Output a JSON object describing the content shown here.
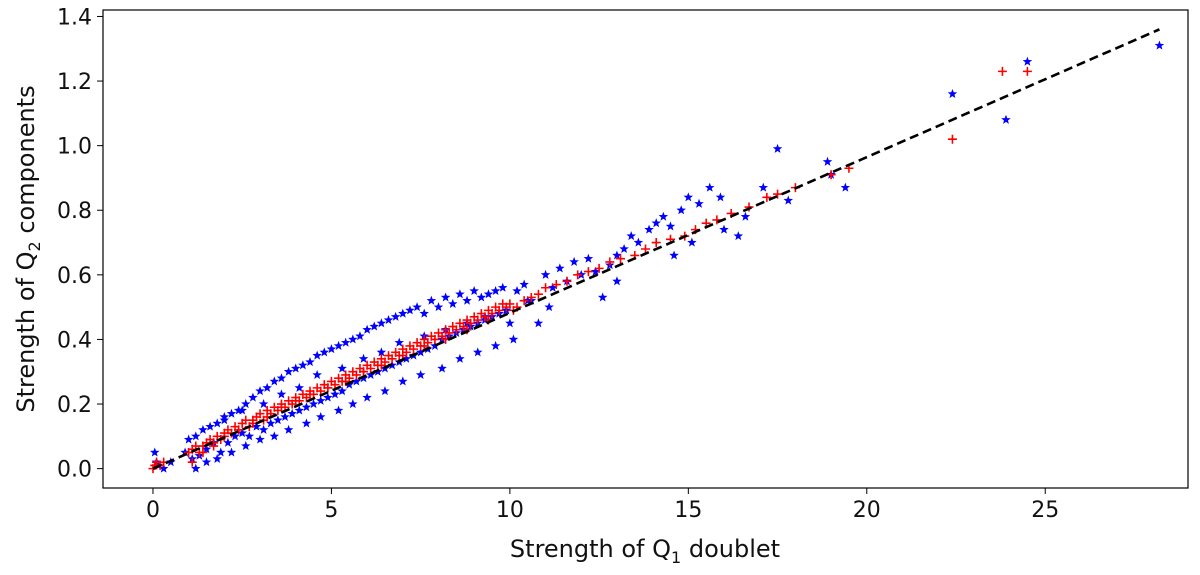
{
  "chart_data": {
    "type": "scatter",
    "xlabel": {
      "prefix": "Strength of Q",
      "subscript": "1",
      "suffix": " doublet"
    },
    "ylabel": {
      "prefix": "Strength of Q",
      "subscript": "2",
      "suffix": " components"
    },
    "xlim": [
      -1.4,
      29.0
    ],
    "ylim": [
      -0.06,
      1.42
    ],
    "xticks": [
      0,
      5,
      10,
      15,
      20,
      25
    ],
    "xtick_labels": [
      "0",
      "5",
      "10",
      "15",
      "20",
      "25"
    ],
    "yticks": [
      0.0,
      0.2,
      0.4,
      0.6,
      0.8,
      1.0,
      1.2,
      1.4
    ],
    "ytick_labels": [
      "0.0",
      "0.2",
      "0.4",
      "0.6",
      "0.8",
      "1.0",
      "1.2",
      "1.4"
    ],
    "grid": false,
    "fit_line": {
      "style": "dashed",
      "color": "#000000",
      "x": [
        0,
        28.2
      ],
      "y": [
        0.0,
        1.36
      ]
    },
    "series": [
      {
        "marker": "star",
        "color": "#0000ff",
        "x": [
          0.05,
          0.1,
          0.15,
          0.3,
          0.5,
          0.9,
          1.0,
          1.1,
          1.2,
          1.3,
          1.4,
          1.5,
          1.6,
          1.7,
          1.8,
          1.9,
          2.0,
          2.1,
          2.2,
          2.3,
          2.4,
          2.5,
          2.6,
          2.7,
          2.8,
          2.9,
          3.0,
          3.1,
          3.2,
          3.3,
          3.4,
          3.5,
          3.6,
          3.7,
          3.8,
          3.9,
          4.0,
          4.1,
          4.2,
          4.3,
          4.4,
          4.5,
          4.6,
          4.7,
          4.8,
          4.9,
          5.0,
          5.1,
          5.2,
          5.3,
          5.4,
          5.5,
          5.6,
          5.7,
          5.8,
          5.9,
          6.0,
          6.1,
          6.2,
          6.3,
          6.4,
          6.5,
          6.6,
          6.7,
          6.8,
          6.9,
          7.0,
          7.1,
          7.2,
          7.3,
          7.4,
          7.5,
          7.6,
          7.7,
          7.8,
          7.9,
          8.0,
          8.1,
          8.2,
          8.3,
          8.4,
          8.5,
          8.6,
          8.7,
          8.8,
          8.9,
          9.0,
          9.1,
          9.2,
          9.3,
          9.4,
          9.5,
          9.6,
          9.7,
          9.8,
          9.9,
          10.0,
          10.1,
          10.2,
          10.4,
          10.6,
          10.8,
          11.0,
          11.2,
          11.4,
          11.6,
          11.8,
          12.0,
          12.2,
          12.4,
          12.6,
          12.8,
          13.0,
          13.2,
          13.4,
          13.6,
          13.9,
          14.1,
          14.3,
          14.5,
          14.8,
          15.0,
          15.3,
          15.6,
          15.9,
          16.4,
          17.1,
          17.5,
          17.8,
          18.9,
          19.4,
          19.0,
          22.4,
          23.9,
          24.5,
          28.2,
          1.2,
          1.5,
          1.8,
          2.2,
          2.6,
          3.0,
          3.4,
          3.8,
          4.3,
          4.7,
          5.2,
          5.6,
          6.0,
          6.5,
          7.0,
          7.5,
          8.1,
          8.6,
          9.1,
          9.6,
          2.0,
          2.5,
          3.1,
          3.6,
          4.1,
          4.6,
          5.3,
          5.9,
          6.4,
          6.9,
          7.6,
          8.2,
          8.8,
          9.3,
          9.9,
          10.5,
          11.1,
          13.0,
          14.6,
          15.1,
          16.0,
          16.6
        ],
        "y": [
          0.05,
          0.02,
          0.01,
          0.0,
          0.02,
          0.05,
          0.09,
          0.03,
          0.1,
          0.04,
          0.12,
          0.06,
          0.13,
          0.08,
          0.14,
          0.05,
          0.16,
          0.08,
          0.17,
          0.1,
          0.18,
          0.11,
          0.2,
          0.1,
          0.22,
          0.13,
          0.24,
          0.12,
          0.25,
          0.14,
          0.27,
          0.15,
          0.28,
          0.16,
          0.3,
          0.17,
          0.31,
          0.18,
          0.32,
          0.19,
          0.33,
          0.2,
          0.35,
          0.21,
          0.36,
          0.22,
          0.37,
          0.23,
          0.38,
          0.24,
          0.39,
          0.26,
          0.4,
          0.27,
          0.41,
          0.28,
          0.43,
          0.29,
          0.44,
          0.3,
          0.45,
          0.31,
          0.46,
          0.32,
          0.47,
          0.33,
          0.48,
          0.34,
          0.49,
          0.35,
          0.5,
          0.36,
          0.48,
          0.37,
          0.52,
          0.38,
          0.5,
          0.4,
          0.53,
          0.41,
          0.51,
          0.42,
          0.54,
          0.43,
          0.52,
          0.44,
          0.55,
          0.45,
          0.53,
          0.46,
          0.54,
          0.47,
          0.55,
          0.48,
          0.56,
          0.49,
          0.45,
          0.4,
          0.55,
          0.57,
          0.52,
          0.45,
          0.6,
          0.56,
          0.62,
          0.58,
          0.64,
          0.6,
          0.65,
          0.61,
          0.53,
          0.63,
          0.66,
          0.68,
          0.72,
          0.7,
          0.74,
          0.76,
          0.78,
          0.75,
          0.8,
          0.84,
          0.82,
          0.87,
          0.84,
          0.72,
          0.87,
          0.99,
          0.83,
          0.95,
          0.87,
          0.91,
          1.16,
          1.08,
          1.26,
          1.31,
          0.0,
          0.02,
          0.03,
          0.05,
          0.07,
          0.09,
          0.1,
          0.12,
          0.14,
          0.16,
          0.18,
          0.2,
          0.22,
          0.24,
          0.27,
          0.29,
          0.31,
          0.34,
          0.36,
          0.38,
          0.15,
          0.18,
          0.2,
          0.23,
          0.25,
          0.29,
          0.31,
          0.34,
          0.36,
          0.39,
          0.41,
          0.43,
          0.45,
          0.47,
          0.49,
          0.52,
          0.5,
          0.58,
          0.66,
          0.7,
          0.74,
          0.78
        ]
      },
      {
        "marker": "plus",
        "color": "#ff0000",
        "x": [
          0.0,
          0.05,
          0.1,
          0.2,
          0.3,
          1.0,
          1.1,
          1.2,
          1.3,
          1.4,
          1.5,
          1.6,
          1.7,
          1.8,
          1.9,
          2.0,
          2.1,
          2.2,
          2.3,
          2.4,
          2.5,
          2.6,
          2.7,
          2.8,
          2.9,
          3.0,
          3.1,
          3.2,
          3.3,
          3.4,
          3.5,
          3.6,
          3.7,
          3.8,
          3.9,
          4.0,
          4.1,
          4.2,
          4.3,
          4.4,
          4.5,
          4.6,
          4.7,
          4.8,
          4.9,
          5.0,
          5.1,
          5.2,
          5.3,
          5.4,
          5.5,
          5.6,
          5.7,
          5.8,
          5.9,
          6.0,
          6.1,
          6.2,
          6.3,
          6.4,
          6.5,
          6.6,
          6.7,
          6.8,
          6.9,
          7.0,
          7.1,
          7.2,
          7.3,
          7.4,
          7.5,
          7.6,
          7.7,
          7.8,
          7.9,
          8.0,
          8.1,
          8.2,
          8.3,
          8.4,
          8.5,
          8.6,
          8.7,
          8.8,
          8.9,
          9.0,
          9.1,
          9.2,
          9.3,
          9.4,
          9.5,
          9.6,
          9.7,
          9.8,
          9.9,
          10.0,
          10.2,
          10.4,
          10.6,
          10.8,
          11.0,
          11.3,
          11.6,
          11.9,
          12.2,
          12.5,
          12.8,
          13.1,
          13.5,
          13.8,
          14.1,
          14.5,
          14.9,
          15.2,
          15.5,
          15.8,
          16.2,
          16.7,
          17.2,
          17.5,
          18.0,
          19.0,
          19.5,
          22.4,
          23.8,
          24.5,
          1.1,
          1.4,
          1.7,
          2.0,
          2.4,
          2.8,
          3.2,
          3.6,
          4.0,
          4.4,
          4.9,
          5.4,
          5.9,
          6.4,
          7.0,
          7.6,
          8.2,
          8.8,
          9.4,
          10.1
        ],
        "y": [
          0.0,
          0.01,
          0.02,
          0.01,
          0.02,
          0.05,
          0.06,
          0.07,
          0.05,
          0.07,
          0.08,
          0.09,
          0.08,
          0.1,
          0.09,
          0.11,
          0.12,
          0.11,
          0.13,
          0.12,
          0.14,
          0.15,
          0.13,
          0.15,
          0.16,
          0.17,
          0.15,
          0.18,
          0.17,
          0.19,
          0.18,
          0.2,
          0.19,
          0.21,
          0.2,
          0.22,
          0.21,
          0.23,
          0.22,
          0.24,
          0.23,
          0.25,
          0.24,
          0.26,
          0.25,
          0.27,
          0.26,
          0.28,
          0.27,
          0.29,
          0.28,
          0.3,
          0.29,
          0.31,
          0.3,
          0.32,
          0.31,
          0.33,
          0.32,
          0.34,
          0.33,
          0.35,
          0.34,
          0.36,
          0.35,
          0.37,
          0.36,
          0.38,
          0.37,
          0.39,
          0.38,
          0.4,
          0.39,
          0.41,
          0.4,
          0.42,
          0.41,
          0.43,
          0.42,
          0.44,
          0.43,
          0.45,
          0.44,
          0.46,
          0.45,
          0.47,
          0.46,
          0.48,
          0.47,
          0.49,
          0.48,
          0.5,
          0.49,
          0.51,
          0.5,
          0.51,
          0.5,
          0.52,
          0.53,
          0.54,
          0.56,
          0.57,
          0.58,
          0.6,
          0.61,
          0.62,
          0.64,
          0.65,
          0.66,
          0.68,
          0.7,
          0.71,
          0.72,
          0.74,
          0.76,
          0.77,
          0.79,
          0.81,
          0.84,
          0.85,
          0.87,
          0.91,
          0.93,
          1.02,
          1.23,
          1.23,
          0.02,
          0.05,
          0.07,
          0.1,
          0.12,
          0.14,
          0.16,
          0.19,
          0.21,
          0.23,
          0.25,
          0.27,
          0.3,
          0.32,
          0.35,
          0.38,
          0.4,
          0.43,
          0.46,
          0.49
        ]
      }
    ]
  }
}
